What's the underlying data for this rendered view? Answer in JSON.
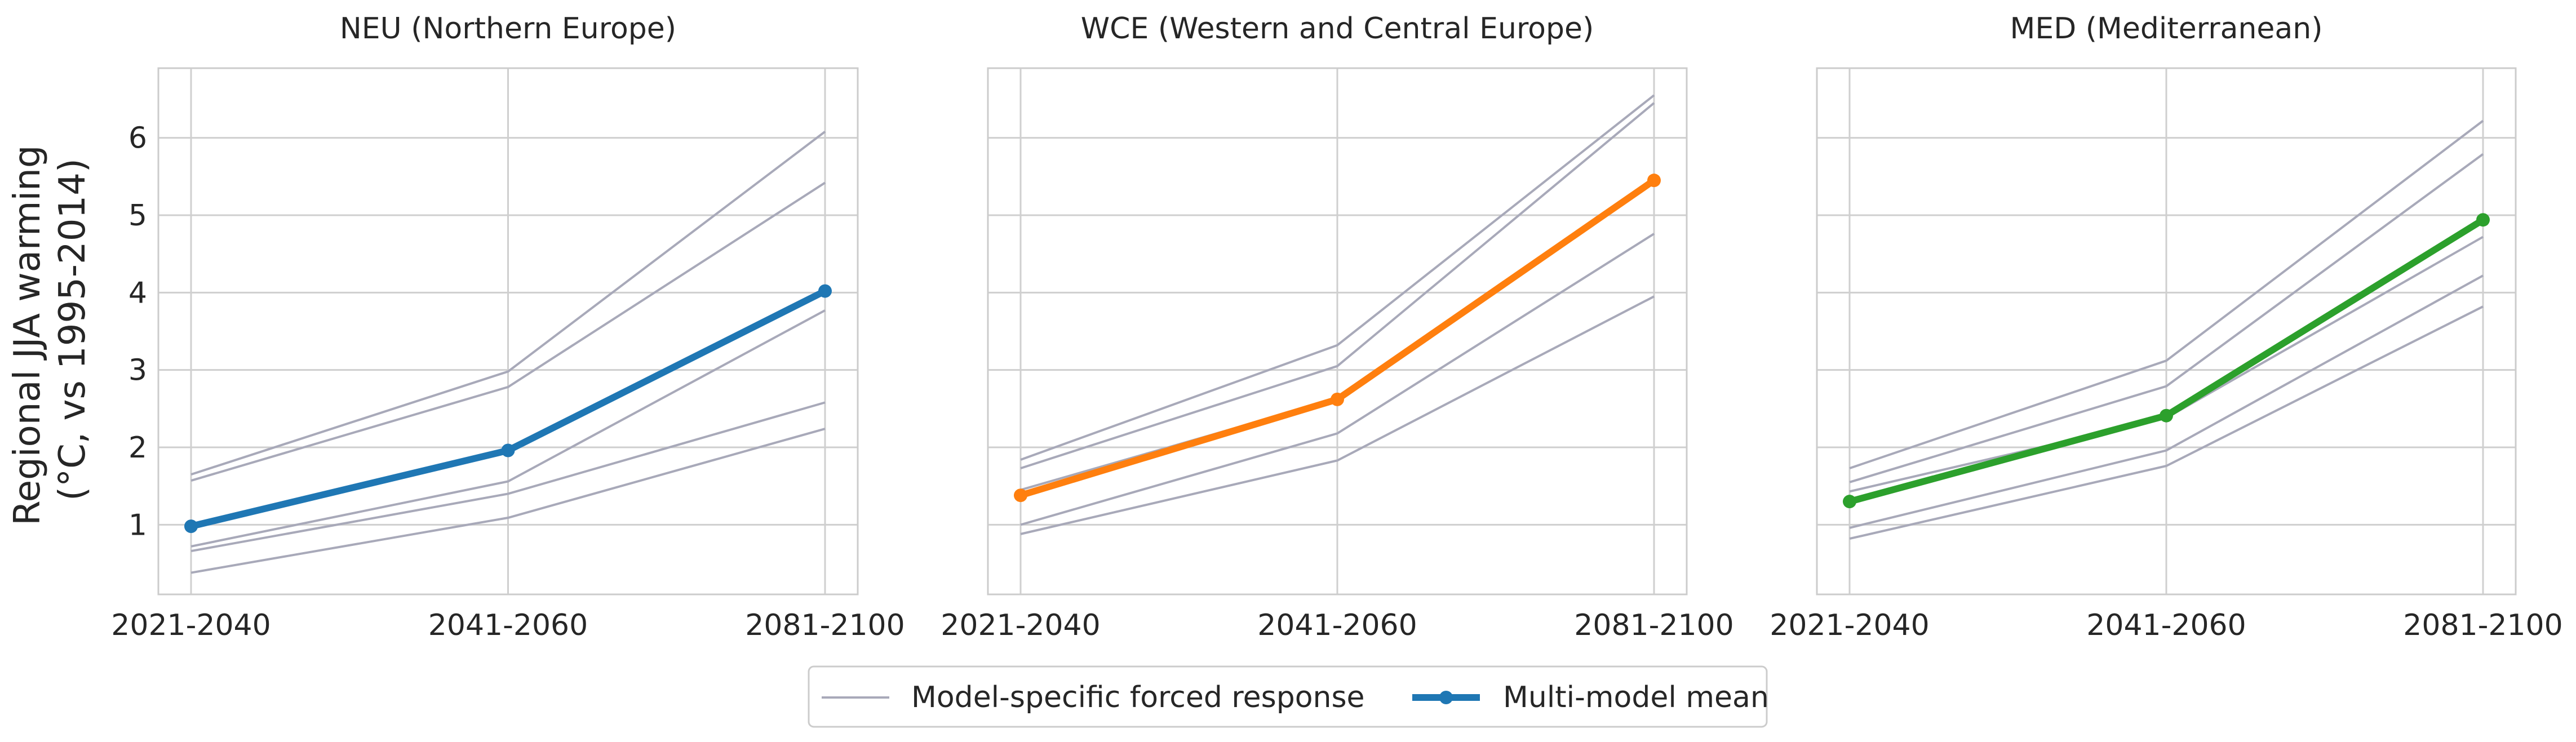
{
  "ylabel_lines": [
    "Regional JJA warming",
    "(°C, vs 1995-2014)"
  ],
  "legend": {
    "model_label": "Model-specific forced response",
    "mean_label": "Multi-model mean"
  },
  "colors": {
    "model_lines": "#a8a9b9",
    "grid": "#cfcfcf",
    "axes_edge": "#cccccc",
    "neu_mean": "#1f77b4",
    "wce_mean": "#ff7f0e",
    "med_mean": "#2ca02c"
  },
  "chart_data": [
    {
      "type": "line",
      "title": "NEU (Northern Europe)",
      "categories": [
        "2021-2040",
        "2041-2060",
        "2081-2100"
      ],
      "ylim": [
        0.1,
        6.9
      ],
      "yticks": [
        1,
        2,
        3,
        4,
        5,
        6
      ],
      "grid": true,
      "mean_color": "#1f77b4",
      "series": [
        {
          "name": "Multi-model mean",
          "values": [
            0.98,
            1.96,
            4.02
          ]
        },
        {
          "values": [
            1.65,
            2.98,
            6.08
          ]
        },
        {
          "values": [
            1.57,
            2.78,
            5.42
          ]
        },
        {
          "values": [
            0.72,
            1.56,
            3.77
          ]
        },
        {
          "values": [
            0.66,
            1.4,
            2.58
          ]
        },
        {
          "values": [
            0.38,
            1.09,
            2.24
          ]
        }
      ]
    },
    {
      "type": "line",
      "title": "WCE (Western and Central Europe)",
      "categories": [
        "2021-2040",
        "2041-2060",
        "2081-2100"
      ],
      "ylim": [
        0.1,
        6.9
      ],
      "yticks": [
        1,
        2,
        3,
        4,
        5,
        6
      ],
      "grid": true,
      "mean_color": "#ff7f0e",
      "series": [
        {
          "name": "Multi-model mean",
          "values": [
            1.38,
            2.62,
            5.45
          ]
        },
        {
          "values": [
            1.84,
            3.32,
            6.55
          ]
        },
        {
          "values": [
            1.73,
            3.05,
            6.45
          ]
        },
        {
          "values": [
            1.45,
            2.63,
            5.42
          ]
        },
        {
          "values": [
            1.0,
            2.18,
            4.76
          ]
        },
        {
          "values": [
            0.88,
            1.83,
            3.95
          ]
        }
      ]
    },
    {
      "type": "line",
      "title": "MED (Mediterranean)",
      "categories": [
        "2021-2040",
        "2041-2060",
        "2081-2100"
      ],
      "ylim": [
        0.1,
        6.9
      ],
      "yticks": [
        1,
        2,
        3,
        4,
        5,
        6
      ],
      "grid": true,
      "mean_color": "#2ca02c",
      "series": [
        {
          "name": "Multi-model mean",
          "values": [
            1.3,
            2.41,
            4.94
          ]
        },
        {
          "values": [
            1.73,
            3.12,
            6.22
          ]
        },
        {
          "values": [
            1.55,
            2.79,
            5.79
          ]
        },
        {
          "values": [
            1.43,
            2.38,
            4.72
          ]
        },
        {
          "values": [
            0.96,
            1.96,
            4.22
          ]
        },
        {
          "values": [
            0.82,
            1.76,
            3.82
          ]
        }
      ]
    }
  ]
}
